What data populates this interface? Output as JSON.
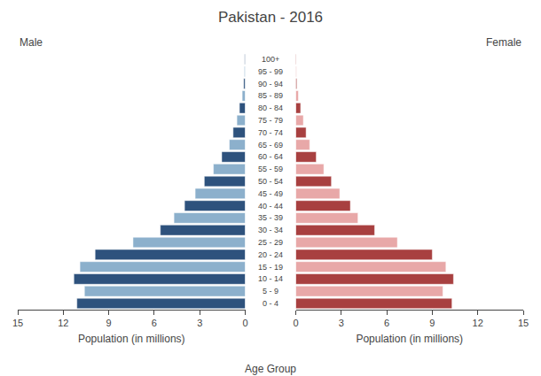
{
  "chart_data": {
    "type": "bar",
    "orientation": "horizontal",
    "title": "Pakistan - 2016",
    "categories": [
      "100+",
      "95 - 99",
      "90 - 94",
      "85 - 89",
      "80 - 84",
      "75 - 79",
      "70 - 74",
      "65 - 69",
      "60 - 64",
      "55 - 59",
      "50 - 54",
      "45 - 49",
      "40 - 44",
      "35 - 39",
      "30 - 34",
      "25 - 29",
      "20 - 24",
      "15 - 19",
      "10 - 14",
      "5 - 9",
      "0 - 4"
    ],
    "series": [
      {
        "name": "Male",
        "colors": [
          "#2e527d",
          "#8cb0cc",
          "#2e527d",
          "#8cb0cc",
          "#2e527d",
          "#8cb0cc",
          "#2e527d",
          "#8cb0cc",
          "#2e527d",
          "#8cb0cc",
          "#2e527d",
          "#8cb0cc",
          "#2e527d",
          "#8cb0cc",
          "#2e527d",
          "#8cb0cc",
          "#2e527d",
          "#8cb0cc",
          "#2e527d",
          "#8cb0cc",
          "#2e527d"
        ],
        "values": [
          0.04,
          0.06,
          0.1,
          0.2,
          0.38,
          0.55,
          0.8,
          1.05,
          1.55,
          2.1,
          2.7,
          3.3,
          4.0,
          4.7,
          5.6,
          7.4,
          9.9,
          10.9,
          11.3,
          10.6,
          11.1
        ]
      },
      {
        "name": "Female",
        "colors": [
          "#a84040",
          "#e8a8a8",
          "#a84040",
          "#e8a8a8",
          "#a84040",
          "#e8a8a8",
          "#a84040",
          "#e8a8a8",
          "#a84040",
          "#e8a8a8",
          "#a84040",
          "#e8a8a8",
          "#a84040",
          "#e8a8a8",
          "#a84040",
          "#e8a8a8",
          "#a84040",
          "#e8a8a8",
          "#a84040",
          "#e8a8a8",
          "#a84040"
        ],
        "values": [
          0.03,
          0.04,
          0.07,
          0.17,
          0.32,
          0.5,
          0.68,
          0.92,
          1.35,
          1.85,
          2.35,
          2.9,
          3.6,
          4.1,
          5.2,
          6.7,
          9.0,
          9.9,
          10.4,
          9.7,
          10.3
        ]
      }
    ],
    "xlabel": "Population (in millions)",
    "ylabel": "Age Group",
    "xlim": [
      0,
      15
    ],
    "xticks": [
      0,
      3,
      6,
      9,
      12,
      15
    ],
    "grid": false
  }
}
